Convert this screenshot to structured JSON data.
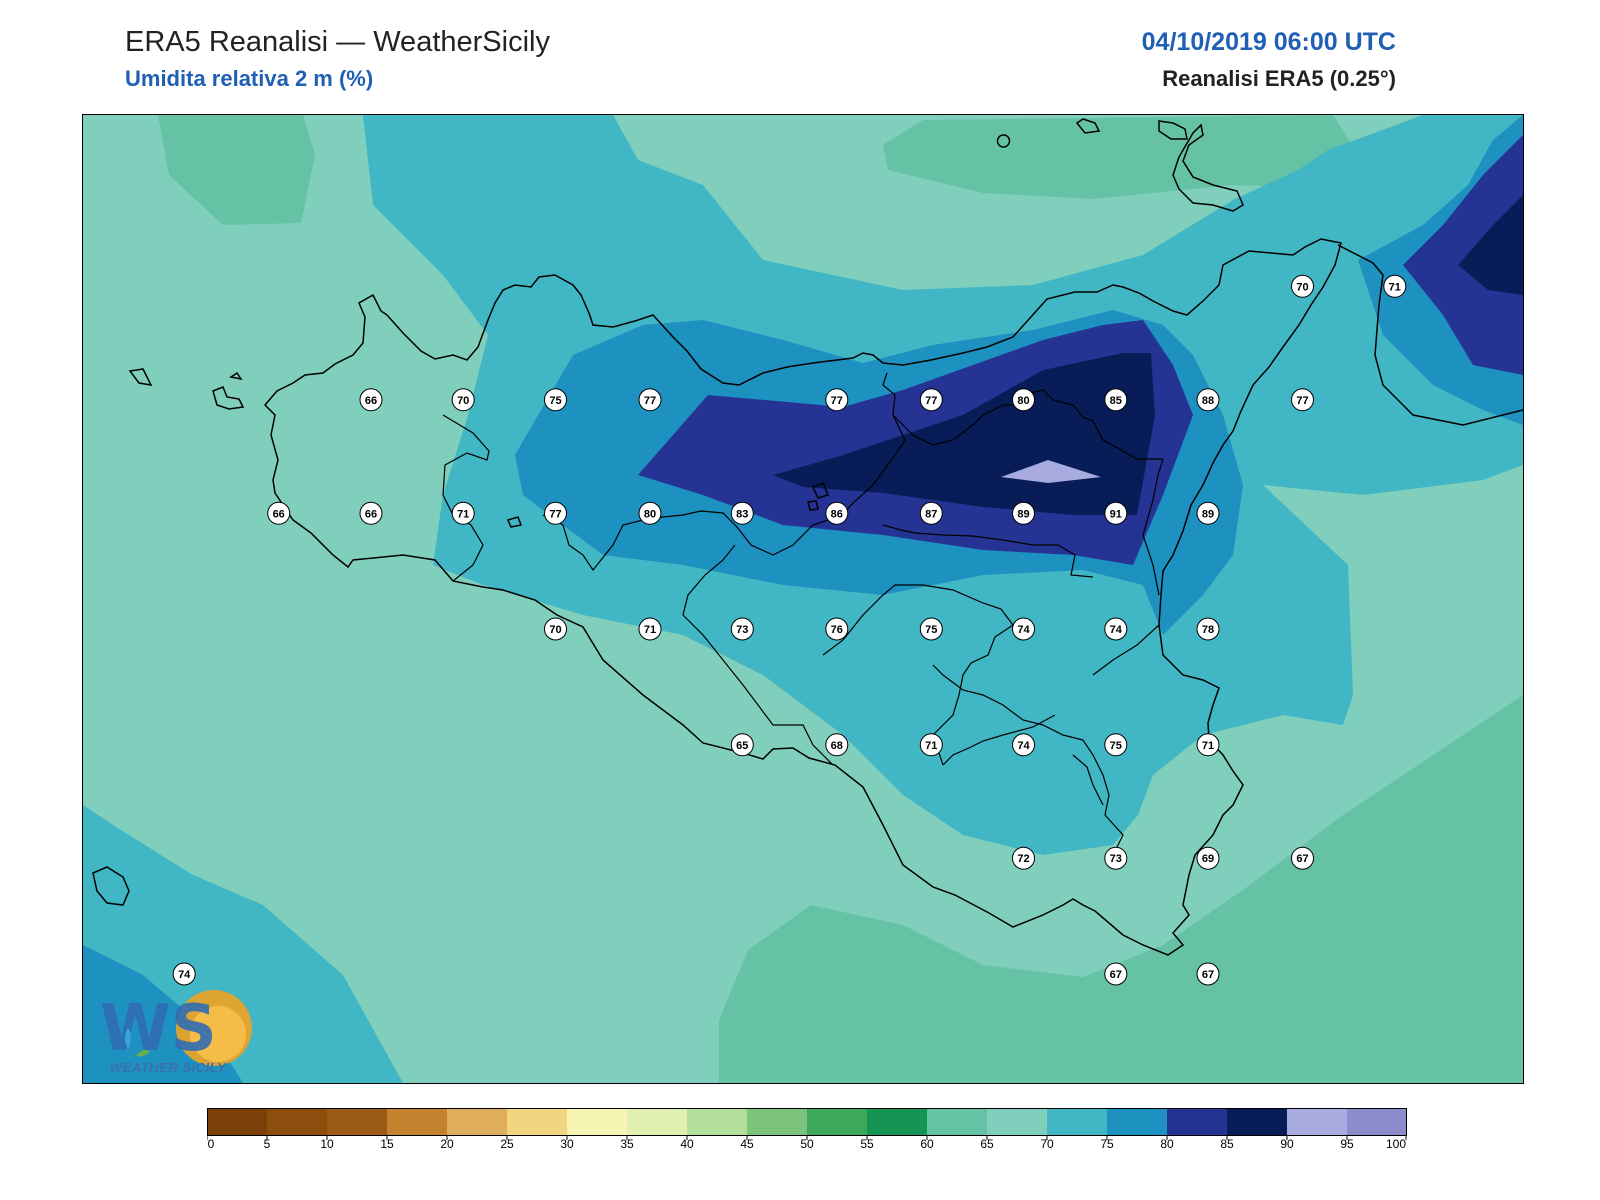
{
  "header": {
    "title": "ERA5 Reanalisi — WeatherSicily",
    "subtitle": "Umidita relativa 2 m (%)",
    "datetime": "04/10/2019 06:00 UTC",
    "source": "Reanalisi ERA5 (0.25°)"
  },
  "logo": {
    "text": "WEATHER SICILY",
    "letters": "WS"
  },
  "colors": {
    "background_band_60_65": "#66c2a5",
    "background_band_65_70": "#80cfbd",
    "band_70_75": "#41b6c4",
    "band_75_80": "#1d91c0",
    "band_80_85": "#253494",
    "band_85_90": "#081d58",
    "band_90_95": "#a7abdf",
    "coastline": "#000000"
  },
  "colorbar": {
    "ticks": [
      "0",
      "5",
      "10",
      "15",
      "20",
      "25",
      "30",
      "35",
      "40",
      "45",
      "50",
      "55",
      "60",
      "65",
      "70",
      "75",
      "80",
      "85",
      "90",
      "95",
      "100"
    ],
    "colors": [
      "#7a4008",
      "#8c4d0d",
      "#9b5a16",
      "#c4822e",
      "#dfae5c",
      "#f1d67f",
      "#f6f5b4",
      "#dff0b0",
      "#b2e09a",
      "#7cc47c",
      "#3ba85a",
      "#169453",
      "#66c2a5",
      "#80cfbd",
      "#41b6c4",
      "#1d91c0",
      "#253494",
      "#081d58",
      "#a7abdf",
      "#8c8ccc"
    ]
  },
  "stations": [
    {
      "value": "66",
      "lon": 12.58,
      "lat": 38.27
    },
    {
      "value": "70",
      "lon": 12.99,
      "lat": 38.27
    },
    {
      "value": "75",
      "lon": 13.4,
      "lat": 38.27
    },
    {
      "value": "77",
      "lon": 13.82,
      "lat": 38.27
    },
    {
      "value": "77",
      "lon": 14.65,
      "lat": 38.27
    },
    {
      "value": "77",
      "lon": 15.07,
      "lat": 38.27
    },
    {
      "value": "80",
      "lon": 15.48,
      "lat": 38.27
    },
    {
      "value": "85",
      "lon": 15.89,
      "lat": 38.27
    },
    {
      "value": "88",
      "lon": 16.3,
      "lat": 38.27
    },
    {
      "value": "77",
      "lon": 16.72,
      "lat": 38.27
    },
    {
      "value": "70",
      "lon": 16.72,
      "lat": 38.78
    },
    {
      "value": "71",
      "lon": 17.13,
      "lat": 38.78
    },
    {
      "value": "66",
      "lon": 12.17,
      "lat": 37.76
    },
    {
      "value": "66",
      "lon": 12.58,
      "lat": 37.76
    },
    {
      "value": "71",
      "lon": 12.99,
      "lat": 37.76
    },
    {
      "value": "77",
      "lon": 13.4,
      "lat": 37.76
    },
    {
      "value": "80",
      "lon": 13.82,
      "lat": 37.76
    },
    {
      "value": "83",
      "lon": 14.23,
      "lat": 37.76
    },
    {
      "value": "86",
      "lon": 14.65,
      "lat": 37.76
    },
    {
      "value": "87",
      "lon": 15.07,
      "lat": 37.76
    },
    {
      "value": "89",
      "lon": 15.48,
      "lat": 37.76
    },
    {
      "value": "91",
      "lon": 15.89,
      "lat": 37.76
    },
    {
      "value": "89",
      "lon": 16.3,
      "lat": 37.76
    },
    {
      "value": "70",
      "lon": 13.4,
      "lat": 37.24
    },
    {
      "value": "71",
      "lon": 13.82,
      "lat": 37.24
    },
    {
      "value": "73",
      "lon": 14.23,
      "lat": 37.24
    },
    {
      "value": "76",
      "lon": 14.65,
      "lat": 37.24
    },
    {
      "value": "75",
      "lon": 15.07,
      "lat": 37.24
    },
    {
      "value": "74",
      "lon": 15.48,
      "lat": 37.24
    },
    {
      "value": "74",
      "lon": 15.89,
      "lat": 37.24
    },
    {
      "value": "78",
      "lon": 16.3,
      "lat": 37.24
    },
    {
      "value": "65",
      "lon": 14.23,
      "lat": 36.72
    },
    {
      "value": "68",
      "lon": 14.65,
      "lat": 36.72
    },
    {
      "value": "71",
      "lon": 15.07,
      "lat": 36.72
    },
    {
      "value": "74",
      "lon": 15.48,
      "lat": 36.72
    },
    {
      "value": "75",
      "lon": 15.89,
      "lat": 36.72
    },
    {
      "value": "71",
      "lon": 16.3,
      "lat": 36.72
    },
    {
      "value": "72",
      "lon": 15.48,
      "lat": 36.21
    },
    {
      "value": "73",
      "lon": 15.89,
      "lat": 36.21
    },
    {
      "value": "69",
      "lon": 16.3,
      "lat": 36.21
    },
    {
      "value": "67",
      "lon": 16.72,
      "lat": 36.21
    },
    {
      "value": "67",
      "lon": 15.89,
      "lat": 35.69
    },
    {
      "value": "67",
      "lon": 16.3,
      "lat": 35.69
    },
    {
      "value": "74",
      "lon": 11.75,
      "lat": 35.69
    }
  ]
}
